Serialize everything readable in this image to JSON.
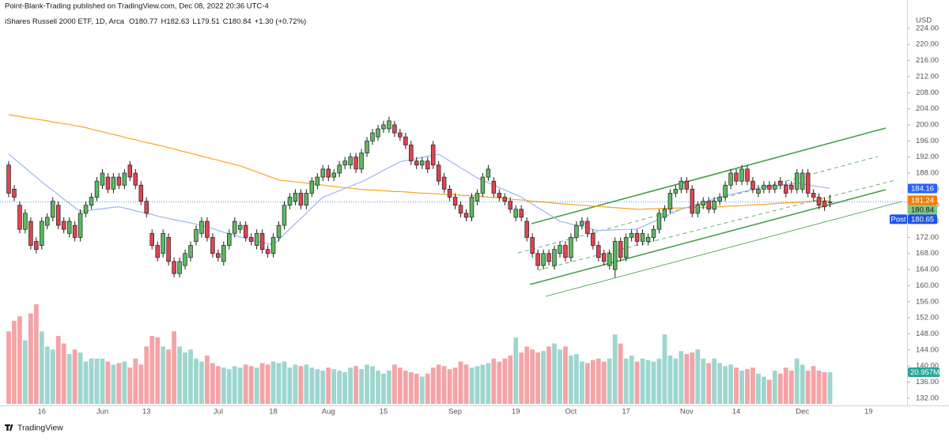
{
  "chart_data": {
    "type": "candlestick",
    "header": "Point-Blank-Trading published on TradingView.com, Dec 08, 2022 20:36 UTC-4",
    "legend": "iShares Russell 2000 ETF, 1D, Arca",
    "ohlc_prefixes": [
      "O",
      "H",
      "L",
      "C"
    ],
    "change": "+1.30 (+0.72%)",
    "currency": "USD",
    "footer": "TradingView",
    "up_color": "#5cb860",
    "down_color": "#e04450",
    "ylim": [
      130.2,
      228.3
    ],
    "yticks": [
      {
        "value": 132,
        "label": "132.00"
      },
      {
        "value": 136,
        "label": "136.00"
      },
      {
        "value": 140,
        "label": "140.00"
      },
      {
        "value": 144,
        "label": "144.00"
      },
      {
        "value": 148,
        "label": "148.00"
      },
      {
        "value": 152,
        "label": "152.00"
      },
      {
        "value": 156,
        "label": "156.00"
      },
      {
        "value": 160,
        "label": "160.00"
      },
      {
        "value": 164,
        "label": "164.00"
      },
      {
        "value": 168,
        "label": "168.00"
      },
      {
        "value": 172,
        "label": "172.00"
      },
      {
        "value": 176,
        "label": "176.00"
      },
      {
        "value": 180,
        "label": "180.00"
      },
      {
        "value": 184,
        "label": "184.00"
      },
      {
        "value": 188,
        "label": "188.00"
      },
      {
        "value": 192,
        "label": "192.00"
      },
      {
        "value": 196,
        "label": "196.00"
      },
      {
        "value": 200,
        "label": "200.00"
      },
      {
        "value": 204,
        "label": "204.00"
      },
      {
        "value": 208,
        "label": "208.00"
      },
      {
        "value": 212,
        "label": "212.00"
      },
      {
        "value": 216,
        "label": "216.00"
      },
      {
        "value": 220,
        "label": "220.00"
      },
      {
        "value": 224,
        "label": "224.00"
      }
    ],
    "categories": [
      null,
      null,
      null,
      null,
      null,
      null,
      "16",
      null,
      null,
      null,
      null,
      null,
      null,
      null,
      null,
      null,
      null,
      "Jun",
      null,
      null,
      null,
      null,
      null,
      null,
      null,
      "13",
      null,
      null,
      null,
      null,
      null,
      null,
      null,
      null,
      null,
      null,
      null,
      null,
      "Jul",
      null,
      null,
      null,
      null,
      null,
      null,
      null,
      null,
      null,
      "18",
      null,
      null,
      null,
      null,
      null,
      null,
      null,
      null,
      null,
      "Aug",
      null,
      null,
      null,
      null,
      null,
      null,
      null,
      null,
      null,
      "15",
      null,
      null,
      null,
      null,
      null,
      null,
      null,
      null,
      null,
      null,
      null,
      null,
      "Sep",
      null,
      null,
      null,
      null,
      null,
      null,
      null,
      null,
      null,
      null,
      "19",
      null,
      null,
      null,
      null,
      null,
      null,
      null,
      null,
      null,
      "Oct",
      null,
      null,
      null,
      null,
      null,
      null,
      null,
      null,
      null,
      "17",
      null,
      null,
      null,
      null,
      null,
      null,
      null,
      null,
      null,
      null,
      "Nov",
      null,
      null,
      null,
      null,
      null,
      null,
      null,
      null,
      "14",
      null,
      null,
      null,
      null,
      null,
      null,
      null,
      null,
      null,
      null,
      null,
      "Dec",
      null,
      null,
      null,
      null,
      null,
      null,
      null,
      null,
      null,
      null,
      null,
      "19"
    ],
    "open": [
      190,
      184,
      180,
      174,
      176,
      171,
      170,
      175,
      177,
      180,
      176,
      173,
      175,
      172,
      178,
      180,
      182,
      185,
      187,
      184,
      187,
      185,
      190,
      188,
      185,
      181,
      173,
      170,
      168,
      172,
      166,
      163,
      165,
      167,
      171,
      173,
      176,
      172,
      168,
      166,
      170,
      173,
      174,
      175,
      172,
      170,
      173,
      169,
      168,
      172,
      175,
      180,
      181,
      183,
      180,
      183,
      185,
      187,
      189,
      187,
      188,
      190,
      190,
      192,
      189,
      193,
      196,
      197,
      199,
      199,
      200,
      198,
      197,
      195,
      191,
      190,
      191,
      195,
      190,
      187,
      184,
      182,
      180,
      178,
      177,
      181,
      183,
      187,
      186,
      183,
      182,
      181,
      177,
      179,
      176,
      172,
      168,
      165,
      168,
      165,
      168,
      170,
      167,
      172,
      175,
      176,
      173,
      170,
      168,
      165,
      164,
      171,
      167,
      172,
      173,
      171,
      171,
      172,
      174,
      177,
      179,
      183,
      184,
      186,
      184,
      178,
      180,
      181,
      179,
      181,
      182,
      185,
      188,
      186,
      189,
      186,
      183,
      184,
      185,
      184,
      186,
      185,
      185,
      184,
      184,
      188,
      183,
      182,
      181,
      180.77,
      null,
      null,
      null,
      null,
      null,
      null,
      null
    ],
    "high": [
      191,
      185,
      181,
      179,
      177,
      172,
      177,
      178,
      182,
      181,
      177,
      177,
      176,
      179,
      181,
      183,
      187,
      189,
      188,
      188,
      188,
      189,
      191,
      189,
      186,
      182,
      174,
      171,
      174,
      173,
      167,
      167,
      169,
      171,
      175,
      177,
      177,
      173,
      169,
      171,
      174,
      177,
      176,
      176,
      173,
      174,
      174,
      170,
      173,
      176,
      181,
      183,
      184,
      184,
      184,
      187,
      188,
      190,
      190,
      189,
      191,
      192,
      193,
      193,
      194,
      197,
      199,
      200,
      201,
      202,
      201,
      199,
      198,
      196,
      192,
      192,
      192,
      196,
      191,
      188,
      185,
      183,
      181,
      179,
      183,
      184,
      188,
      190,
      187,
      184,
      183,
      182,
      180,
      180,
      177,
      173,
      169,
      169,
      169,
      170,
      171,
      171,
      173,
      176,
      177,
      177,
      174,
      171,
      169,
      169,
      172,
      172,
      173,
      174,
      174,
      174,
      173,
      175,
      179,
      180,
      184,
      185,
      187,
      187,
      185,
      181,
      182,
      182,
      182,
      183,
      186,
      189,
      189,
      190,
      190,
      187,
      185,
      186,
      186,
      186,
      187,
      186,
      186,
      189,
      189,
      189,
      184,
      183,
      182,
      182.63,
      null,
      null,
      null,
      null,
      null,
      null,
      null
    ],
    "low": [
      182,
      181,
      173,
      173,
      169,
      168,
      169,
      174,
      176,
      174,
      173,
      172,
      171,
      171,
      177,
      179,
      181,
      184,
      183,
      183,
      184,
      184,
      186,
      184,
      180,
      177,
      169,
      166,
      167,
      165,
      162,
      162,
      164,
      166,
      170,
      172,
      171,
      167,
      166,
      165,
      169,
      172,
      173,
      171,
      170,
      169,
      168,
      167,
      167,
      171,
      174,
      179,
      180,
      179,
      179,
      182,
      184,
      186,
      186,
      186,
      187,
      189,
      189,
      188,
      188,
      192,
      195,
      196,
      198,
      198,
      197,
      196,
      194,
      190,
      189,
      189,
      188,
      189,
      185,
      183,
      181,
      179,
      177,
      176,
      176,
      180,
      182,
      186,
      182,
      181,
      180,
      178,
      176,
      176,
      171,
      167,
      164,
      164,
      165,
      164,
      167,
      166,
      166,
      171,
      174,
      172,
      169,
      166,
      165,
      164,
      162,
      166,
      166,
      171,
      170,
      170,
      170,
      171,
      173,
      176,
      178,
      182,
      183,
      183,
      177,
      177,
      179,
      178,
      178,
      180,
      181,
      184,
      185,
      185,
      185,
      183,
      182,
      183,
      183,
      183,
      184,
      182,
      183,
      183,
      183,
      182,
      181,
      179,
      178.6,
      179.51,
      null,
      null,
      null,
      null,
      null,
      null,
      null
    ],
    "close": [
      183,
      182,
      174,
      178,
      170,
      169,
      176,
      177,
      181,
      175,
      174,
      176,
      172,
      178,
      180,
      182,
      186,
      188,
      184,
      187,
      185,
      188,
      187,
      185,
      181,
      178,
      170,
      167,
      173,
      166,
      163,
      166,
      168,
      170,
      174,
      176,
      172,
      168,
      167,
      170,
      173,
      176,
      175,
      172,
      171,
      173,
      169,
      168,
      172,
      175,
      180,
      182,
      183,
      180,
      183,
      186,
      187,
      189,
      187,
      188,
      190,
      191,
      192,
      189,
      193,
      196,
      198,
      199,
      200,
      201,
      198,
      197,
      195,
      191,
      190,
      191,
      189,
      190,
      186,
      184,
      182,
      180,
      178,
      177,
      182,
      183,
      187,
      189,
      183,
      182,
      181,
      179,
      179,
      177,
      172,
      168,
      165,
      168,
      166,
      169,
      170,
      167,
      172,
      175,
      176,
      173,
      170,
      167,
      166,
      168,
      171,
      167,
      172,
      173,
      171,
      173,
      172,
      174,
      178,
      179,
      183,
      184,
      186,
      184,
      178,
      180,
      181,
      179,
      181,
      182,
      185,
      188,
      186,
      189,
      186,
      184,
      184,
      185,
      184,
      185,
      185,
      183,
      184,
      188,
      188,
      183,
      182,
      180,
      179.6,
      180.84,
      null,
      null,
      null,
      null,
      null,
      null,
      null
    ],
    "volume": {
      "up_color": "#9dd6cf",
      "down_color": "#f4a3a6",
      "badge_color": "#26a69a",
      "last_label": "20.957M",
      "values": [
        48,
        55,
        58,
        42,
        60,
        66,
        48,
        38,
        36,
        45,
        40,
        33,
        36,
        34,
        28,
        30,
        30,
        30,
        28,
        26,
        27,
        28,
        24,
        30,
        26,
        38,
        45,
        44,
        38,
        36,
        48,
        38,
        34,
        36,
        30,
        28,
        32,
        27,
        25,
        24,
        23,
        25,
        24,
        26,
        25,
        24,
        27,
        26,
        28,
        27,
        28,
        24,
        26,
        25,
        26,
        24,
        23,
        22,
        24,
        23,
        22,
        21,
        24,
        25,
        23,
        26,
        25,
        22,
        20,
        22,
        26,
        24,
        22,
        21,
        20,
        18,
        20,
        24,
        26,
        25,
        23,
        24,
        28,
        26,
        24,
        25,
        26,
        27,
        30,
        28,
        30,
        32,
        44,
        34,
        38,
        36,
        34,
        35,
        38,
        40,
        36,
        38,
        32,
        33,
        28,
        27,
        29,
        30,
        28,
        30,
        46,
        40,
        30,
        32,
        28,
        30,
        29,
        28,
        30,
        46,
        32,
        30,
        35,
        33,
        34,
        36,
        30,
        27,
        30,
        27,
        25,
        26,
        24,
        22,
        23,
        24,
        20,
        18,
        16,
        22,
        20,
        24,
        22,
        30,
        26,
        22,
        25,
        22,
        21,
        20.957,
        null,
        null,
        null,
        null,
        null,
        null,
        null
      ]
    },
    "lines": [
      {
        "color": "#f5a623",
        "values": [
          202.5,
          202.3,
          202.1,
          201.8,
          201.6,
          201.4,
          201.2,
          201.0,
          200.7,
          200.5,
          200.3,
          200.1,
          199.8,
          199.6,
          199.3,
          198.9,
          198.6,
          198.3,
          197.9,
          197.6,
          197.3,
          196.9,
          196.6,
          196.3,
          195.9,
          195.6,
          195.3,
          195.0,
          194.7,
          194.3,
          194.0,
          193.6,
          193.3,
          192.9,
          192.6,
          192.2,
          191.9,
          191.5,
          191.2,
          190.8,
          190.5,
          190.1,
          189.8,
          189.3,
          188.8,
          188.3,
          187.8,
          187.3,
          186.8,
          186.3,
          186.1,
          186.0,
          185.8,
          185.7,
          185.5,
          185.3,
          185.2,
          185.0,
          184.8,
          184.7,
          184.5,
          184.4,
          184.2,
          184.1,
          183.9,
          183.8,
          183.8,
          183.7,
          183.6,
          183.5,
          183.4,
          183.4,
          183.3,
          183.2,
          183.1,
          183.0,
          183.0,
          182.9,
          182.8,
          182.7,
          182.7,
          182.6,
          182.5,
          182.4,
          182.4,
          182.3,
          182.2,
          182.0,
          181.9,
          181.8,
          181.7,
          181.5,
          181.4,
          181.3,
          181.2,
          181.0,
          180.9,
          180.8,
          180.7,
          180.5,
          180.4,
          180.3,
          180.2,
          180.1,
          180.0,
          179.9,
          179.8,
          179.7,
          179.6,
          179.5,
          179.4,
          179.3,
          179.2,
          179.1,
          179.0,
          179.0,
          179.1,
          179.1,
          179.2,
          179.2,
          179.3,
          179.3,
          179.3,
          179.4,
          179.4,
          179.5,
          179.5,
          179.5,
          179.6,
          179.6,
          179.7,
          179.8,
          179.8,
          179.9,
          180.0,
          180.1,
          180.2,
          180.2,
          180.3,
          180.4,
          180.5,
          180.6,
          180.6,
          180.7,
          180.8,
          180.9,
          181.0,
          181.0,
          181.1,
          181.2,
          null,
          null,
          null,
          null,
          null,
          null,
          null
        ]
      },
      {
        "color": "#9fb3f2",
        "values": [
          192.7,
          191.6,
          190.4,
          189.3,
          188.1,
          187.0,
          185.8,
          184.7,
          183.7,
          182.6,
          181.5,
          180.5,
          179.4,
          178.4,
          178.6,
          178.8,
          179.0,
          179.1,
          179.3,
          179.5,
          179.6,
          179.3,
          179.0,
          178.6,
          178.3,
          178.0,
          177.7,
          177.3,
          177.0,
          176.7,
          176.4,
          176.1,
          175.9,
          175.6,
          175.3,
          175.0,
          174.6,
          174.2,
          173.7,
          173.3,
          172.9,
          172.5,
          172.1,
          171.8,
          171.4,
          171.1,
          170.8,
          170.4,
          170.1,
          171.4,
          172.8,
          174.1,
          175.4,
          176.7,
          178.0,
          179.4,
          180.7,
          182.0,
          182.5,
          183.1,
          183.6,
          184.2,
          184.7,
          185.3,
          185.8,
          186.5,
          187.2,
          187.9,
          188.7,
          189.4,
          190.1,
          190.8,
          191.1,
          191.3,
          191.6,
          191.9,
          192.2,
          192.4,
          192.7,
          191.9,
          191.0,
          190.2,
          189.3,
          188.5,
          187.6,
          186.8,
          186.2,
          185.6,
          185.0,
          184.4,
          183.8,
          183.2,
          182.6,
          182.0,
          181.1,
          180.3,
          179.4,
          178.6,
          177.7,
          176.9,
          176.0,
          175.7,
          175.3,
          175.0,
          174.7,
          174.4,
          174.0,
          173.7,
          173.8,
          173.8,
          173.9,
          173.9,
          174.0,
          174.0,
          174.1,
          174.7,
          175.3,
          175.9,
          176.6,
          177.2,
          177.8,
          178.4,
          179.0,
          179.4,
          179.9,
          180.3,
          180.7,
          181.1,
          181.6,
          182.0,
          182.3,
          182.7,
          183.0,
          183.3,
          183.6,
          184.0,
          184.3,
          184.5,
          184.6,
          184.8,
          185.0,
          185.2,
          185.3,
          185.5,
          185.3,
          185.1,
          184.8,
          184.6,
          184.4,
          184.2,
          null,
          null,
          null,
          null,
          null,
          null,
          null
        ]
      }
    ],
    "price_line_color": "#2962ff",
    "price_badges": [
      {
        "value": 184.16,
        "color": "#2962ff"
      },
      {
        "value": 181.24,
        "color": "#f57c00"
      },
      {
        "value": 180.84,
        "color": "#81c784"
      },
      {
        "name": "Post",
        "value": 180.65,
        "color": "#1e53e5"
      }
    ]
  }
}
